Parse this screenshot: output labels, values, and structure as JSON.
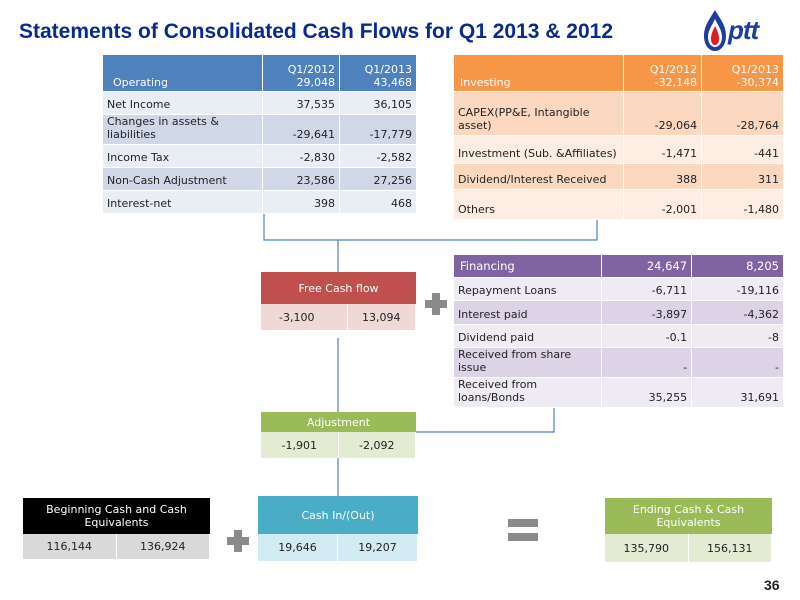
{
  "title": "Statements of Consolidated Cash Flows for Q1 2013 & 2012",
  "logo_text": "ptt",
  "page_number": "36",
  "operating": {
    "label": "Operating",
    "col1": "Q1/2012",
    "col1_total": "29,048",
    "col2": "Q1/2013",
    "col2_total": "43,468",
    "rows": [
      {
        "label": "Net Income",
        "v1": "37,535",
        "v2": "36,105"
      },
      {
        "label": "Changes in assets & liabilities",
        "v1": "-29,641",
        "v2": "-17,779"
      },
      {
        "label": "Income Tax",
        "v1": "-2,830",
        "v2": "-2,582"
      },
      {
        "label": "Non-Cash  Adjustment",
        "v1": "23,586",
        "v2": "27,256"
      },
      {
        "label": "Interest-net",
        "v1": "398",
        "v2": "468"
      }
    ]
  },
  "investing": {
    "label": "Investing",
    "col1": "Q1/2012",
    "col1_total": "-32,148",
    "col2": "Q1/2013",
    "col2_total": "-30,374",
    "rows": [
      {
        "label": "CAPEX(PP&E, Intangible asset)",
        "v1": "-29,064",
        "v2": "-28,764"
      },
      {
        "label": "Investment (Sub. &Affiliates)",
        "v1": "-1,471",
        "v2": "-441"
      },
      {
        "label": "Dividend/Interest Received",
        "v1": "388",
        "v2": "311"
      },
      {
        "label": "Others",
        "v1": "-2,001",
        "v2": "-1,480"
      }
    ]
  },
  "financing": {
    "label": "Financing",
    "v1": "24,647",
    "v2": "8,205",
    "rows": [
      {
        "label": "Repayment  Loans",
        "v1": "-6,711",
        "v2": "-19,116"
      },
      {
        "label": "Interest paid",
        "v1": "-3,897",
        "v2": "-4,362"
      },
      {
        "label": "Dividend paid",
        "v1": "-0.1",
        "v2": "-8"
      },
      {
        "label": "Received from share issue",
        "v1": "-",
        "v2": "-"
      },
      {
        "label": "Received from loans/Bonds",
        "v1": "35,255",
        "v2": "31,691"
      }
    ]
  },
  "free_cash_flow": {
    "label": "Free Cash flow",
    "v1": "-3,100",
    "v2": "13,094"
  },
  "adjustment": {
    "label": "Adjustment",
    "v1": "-1,901",
    "v2": "-2,092"
  },
  "beginning_cash": {
    "label": "Beginning Cash and Cash Equivalents",
    "v1": "116,144",
    "v2": "136,924"
  },
  "cash_in_out": {
    "label": "Cash In/(Out)",
    "v1": "19,646",
    "v2": "19,207"
  },
  "ending_cash": {
    "label": "Ending Cash & Cash Equivalents",
    "v1": "135,790",
    "v2": "156,131"
  },
  "colors": {
    "title": "#0a2a8c",
    "operating": "#4f81bd",
    "investing": "#f79646",
    "financing": "#8064a2",
    "free_cash_flow": "#c0504d",
    "adjustment": "#9bbb59",
    "cash_in_out": "#4bacc6",
    "beginning_cash": "#000000",
    "ending_cash": "#9bbb59"
  }
}
